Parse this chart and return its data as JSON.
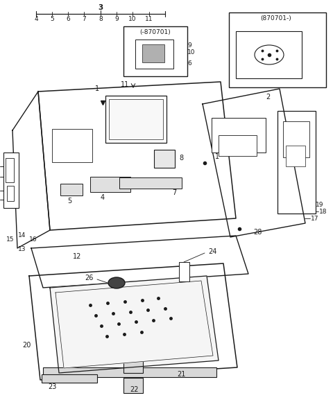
{
  "bg_color": "#ffffff",
  "line_color": "#1a1a1a",
  "text_color": "#1a1a1a",
  "fig_width": 4.8,
  "fig_height": 5.77,
  "dpi": 100
}
